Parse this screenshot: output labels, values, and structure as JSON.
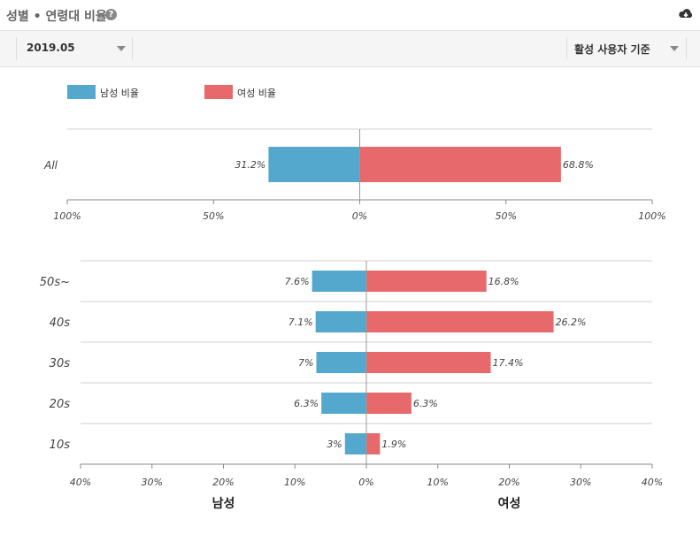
{
  "header": {
    "title": "성별 • 연령대 비율",
    "help_icon": "question-circle-icon",
    "download_icon": "cloud-download-icon"
  },
  "toolbar": {
    "date_value": "2019.05",
    "basis_value": "활성 사용자 기준"
  },
  "colors": {
    "male": "#55a8cd",
    "female": "#e8696b"
  },
  "chart_data": [
    {
      "type": "bar",
      "orientation": "horizontal-diverging",
      "categories": [
        "All"
      ],
      "series": [
        {
          "name": "남성 비율",
          "values": [
            31.2
          ],
          "labels": [
            "31.2%"
          ]
        },
        {
          "name": "여성 비율",
          "values": [
            68.8
          ],
          "labels": [
            "68.8%"
          ]
        }
      ],
      "xlim": [
        -100,
        100
      ],
      "ticks": [
        "100%",
        "50%",
        "0%",
        "50%",
        "100%"
      ],
      "legend": [
        "남성 비율",
        "여성 비율"
      ],
      "legend_placement": "top-left",
      "grid": true
    },
    {
      "type": "bar",
      "orientation": "horizontal-diverging",
      "categories": [
        "50s~",
        "40s",
        "30s",
        "20s",
        "10s"
      ],
      "series": [
        {
          "name": "남성",
          "values": [
            7.6,
            7.1,
            7,
            6.3,
            3
          ],
          "labels": [
            "7.6%",
            "7.1%",
            "7%",
            "6.3%",
            "3%"
          ]
        },
        {
          "name": "여성",
          "values": [
            16.8,
            26.2,
            17.4,
            6.3,
            1.9
          ],
          "labels": [
            "16.8%",
            "26.2%",
            "17.4%",
            "6.3%",
            "1.9%"
          ]
        }
      ],
      "xlim": [
        -40,
        40
      ],
      "ticks": [
        "40%",
        "30%",
        "20%",
        "10%",
        "0%",
        "10%",
        "20%",
        "30%",
        "40%"
      ],
      "xlabel_left": "남성",
      "xlabel_right": "여성",
      "grid": true
    }
  ]
}
